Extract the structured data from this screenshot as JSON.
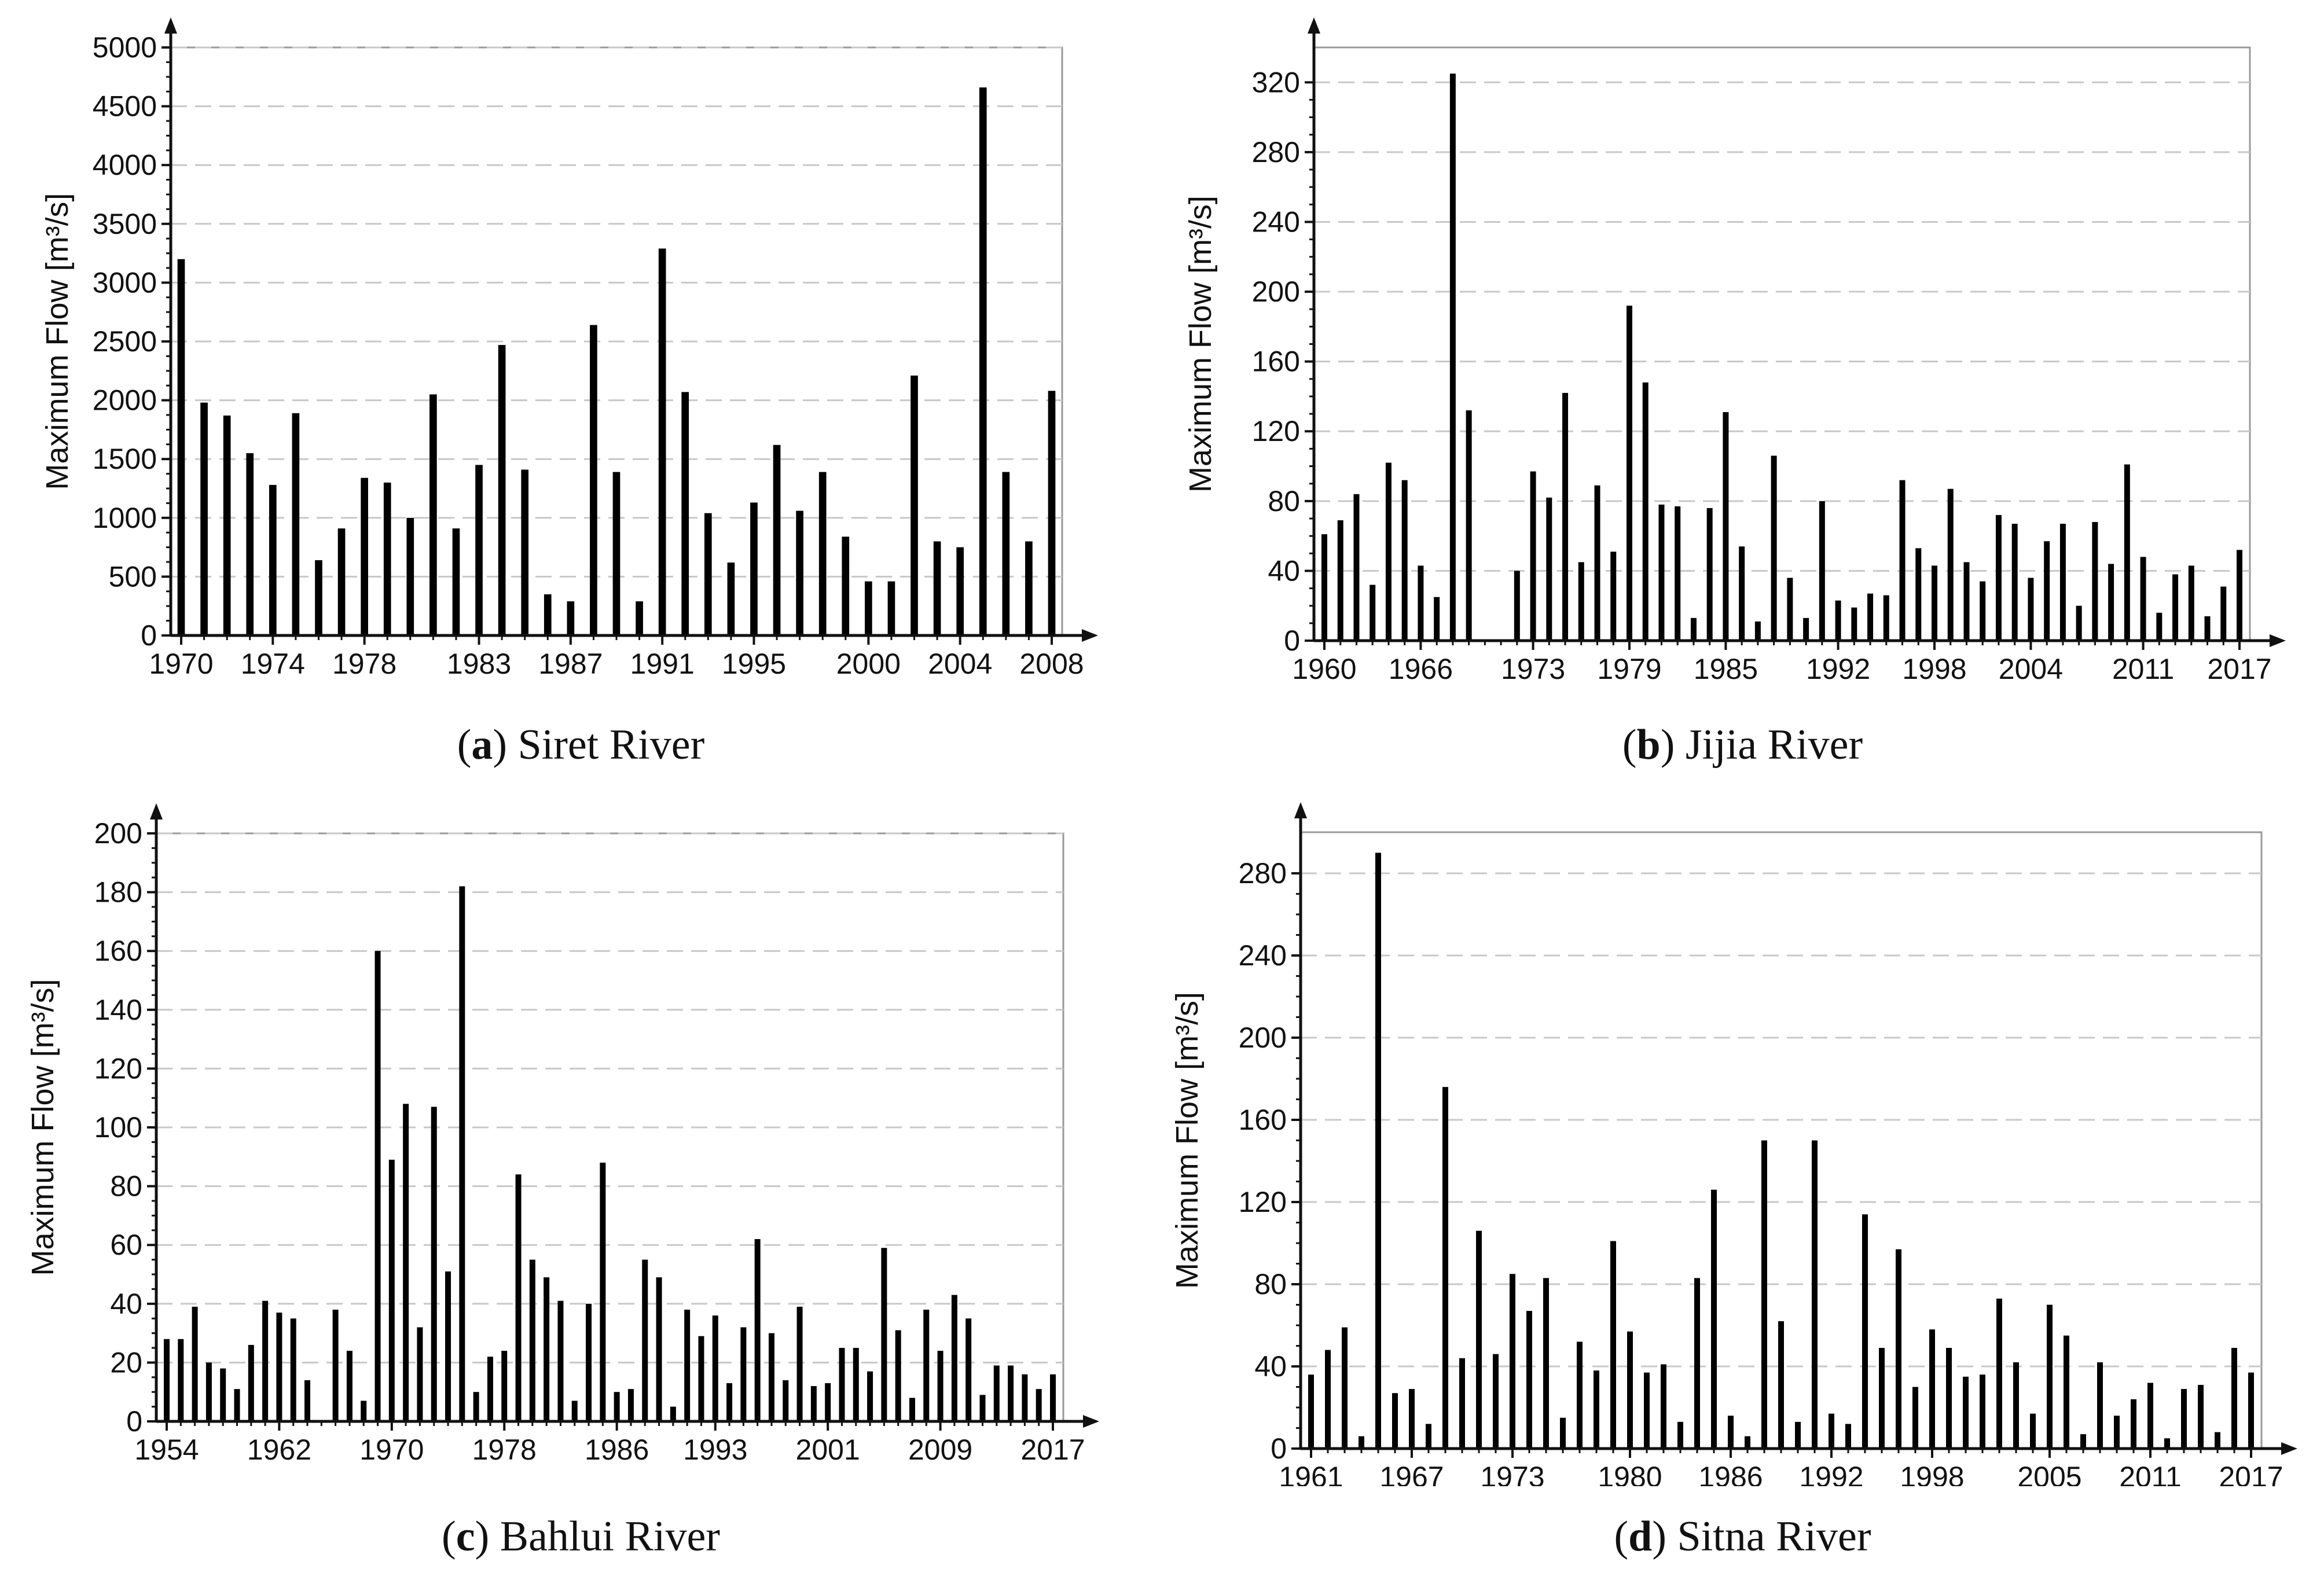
{
  "charts": [
    {
      "letter": "a",
      "caption": "Siret River",
      "chart_data": {
        "type": "bar",
        "title": "(a) Siret River",
        "xlabel": "",
        "ylabel": "Maximum Flow [m³/s]",
        "ylim": [
          0,
          5000
        ],
        "yticks": [
          "0",
          "500",
          "1000",
          "1500",
          "2000",
          "2500",
          "3000",
          "3500",
          "4000",
          "4500",
          "5000"
        ],
        "xlim": [
          1970,
          2008
        ],
        "xticks": [
          "1970",
          "1974",
          "1978",
          "1983",
          "1987",
          "1991",
          "1995",
          "2000",
          "2004",
          "2008"
        ],
        "grid": true,
        "x": [
          1970,
          1971,
          1972,
          1973,
          1974,
          1975,
          1976,
          1977,
          1978,
          1979,
          1980,
          1981,
          1982,
          1983,
          1984,
          1985,
          1986,
          1987,
          1988,
          1989,
          1990,
          1991,
          1992,
          1993,
          1994,
          1995,
          1996,
          1997,
          1998,
          1999,
          2000,
          2001,
          2002,
          2003,
          2004,
          2005,
          2006,
          2007,
          2008
        ],
        "values": [
          3200,
          1980,
          1870,
          1550,
          1280,
          1890,
          640,
          910,
          1340,
          1300,
          1000,
          2050,
          910,
          1450,
          2470,
          1410,
          350,
          290,
          2640,
          1390,
          290,
          3290,
          2070,
          1040,
          620,
          1130,
          1620,
          1060,
          1390,
          840,
          460,
          460,
          2210,
          800,
          750,
          4660,
          1390,
          800,
          2080
        ]
      }
    },
    {
      "letter": "b",
      "caption": "Jijia River",
      "chart_data": {
        "type": "bar",
        "title": "(b) Jijia River",
        "xlabel": "",
        "ylabel": "Maximum Flow [m³/s]",
        "ylim": [
          0,
          340
        ],
        "yticks": [
          "0",
          "40",
          "80",
          "120",
          "160",
          "200",
          "240",
          "280",
          "320"
        ],
        "xlim": [
          1960,
          2017
        ],
        "xticks": [
          "1960",
          "1966",
          "1973",
          "1979",
          "1985",
          "1992",
          "1998",
          "2004",
          "2011",
          "2017"
        ],
        "grid": true,
        "x": [
          1960,
          1961,
          1962,
          1963,
          1964,
          1965,
          1966,
          1967,
          1968,
          1969,
          1970,
          1971,
          1972,
          1973,
          1974,
          1975,
          1976,
          1977,
          1978,
          1979,
          1980,
          1981,
          1982,
          1983,
          1984,
          1985,
          1986,
          1987,
          1988,
          1989,
          1990,
          1991,
          1992,
          1993,
          1994,
          1995,
          1996,
          1997,
          1998,
          1999,
          2000,
          2001,
          2002,
          2003,
          2004,
          2005,
          2006,
          2007,
          2008,
          2009,
          2010,
          2011,
          2012,
          2013,
          2014,
          2015,
          2016,
          2017
        ],
        "values": [
          61,
          69,
          84,
          32,
          102,
          92,
          43,
          25,
          325,
          132,
          0,
          0,
          40,
          97,
          82,
          142,
          45,
          89,
          51,
          192,
          148,
          78,
          77,
          13,
          76,
          131,
          54,
          11,
          106,
          36,
          13,
          80,
          23,
          19,
          27,
          26,
          92,
          53,
          43,
          87,
          45,
          34,
          72,
          67,
          36,
          57,
          67,
          20,
          68,
          44,
          101,
          48,
          16,
          38,
          43,
          14,
          31,
          52
        ]
      }
    },
    {
      "letter": "c",
      "caption": "Bahlui River",
      "chart_data": {
        "type": "bar",
        "title": "(c) Bahlui River",
        "xlabel": "",
        "ylabel": "Maximum Flow [m³/s]",
        "ylim": [
          0,
          200
        ],
        "yticks": [
          "0",
          "20",
          "40",
          "60",
          "80",
          "100",
          "120",
          "140",
          "160",
          "180",
          "200"
        ],
        "xlim": [
          1954,
          2017
        ],
        "xticks": [
          "1954",
          "1962",
          "1970",
          "1978",
          "1986",
          "1993",
          "2001",
          "2009",
          "2017"
        ],
        "grid": true,
        "x": [
          1954,
          1955,
          1956,
          1957,
          1958,
          1959,
          1960,
          1961,
          1962,
          1963,
          1964,
          1965,
          1966,
          1967,
          1968,
          1969,
          1970,
          1971,
          1972,
          1973,
          1974,
          1975,
          1976,
          1977,
          1978,
          1979,
          1980,
          1981,
          1982,
          1983,
          1984,
          1985,
          1986,
          1987,
          1988,
          1989,
          1990,
          1991,
          1992,
          1993,
          1994,
          1995,
          1996,
          1997,
          1998,
          1999,
          2000,
          2001,
          2002,
          2003,
          2004,
          2005,
          2006,
          2007,
          2008,
          2009,
          2010,
          2011,
          2012,
          2013,
          2014,
          2015,
          2016,
          2017
        ],
        "values": [
          28,
          28,
          39,
          20,
          18,
          11,
          26,
          41,
          37,
          35,
          14,
          0,
          38,
          24,
          7,
          160,
          89,
          108,
          32,
          107,
          51,
          182,
          10,
          22,
          24,
          84,
          55,
          49,
          41,
          7,
          40,
          88,
          10,
          11,
          55,
          49,
          5,
          38,
          29,
          36,
          13,
          32,
          62,
          30,
          14,
          39,
          12,
          13,
          25,
          25,
          17,
          59,
          31,
          8,
          38,
          24,
          43,
          35,
          9,
          19,
          19,
          16,
          11,
          16
        ]
      }
    },
    {
      "letter": "d",
      "caption": "Sitna River",
      "chart_data": {
        "type": "bar",
        "title": "(d) Sitna River",
        "xlabel": "",
        "ylabel": "Maximum Flow [m³/s]",
        "ylim": [
          0,
          300
        ],
        "yticks": [
          "0",
          "40",
          "80",
          "120",
          "160",
          "200",
          "240",
          "280"
        ],
        "xlim": [
          1961,
          2017
        ],
        "xticks": [
          "1961",
          "1967",
          "1973",
          "1980",
          "1986",
          "1992",
          "1998",
          "2005",
          "2011",
          "2017"
        ],
        "grid": true,
        "x": [
          1961,
          1962,
          1963,
          1964,
          1965,
          1966,
          1967,
          1968,
          1969,
          1970,
          1971,
          1972,
          1973,
          1974,
          1975,
          1976,
          1977,
          1978,
          1979,
          1980,
          1981,
          1982,
          1983,
          1984,
          1985,
          1986,
          1987,
          1988,
          1989,
          1990,
          1991,
          1992,
          1993,
          1994,
          1995,
          1996,
          1997,
          1998,
          1999,
          2000,
          2001,
          2002,
          2003,
          2004,
          2005,
          2006,
          2007,
          2008,
          2009,
          2010,
          2011,
          2012,
          2013,
          2014,
          2015,
          2016,
          2017
        ],
        "values": [
          36,
          48,
          59,
          6,
          290,
          27,
          29,
          12,
          176,
          44,
          106,
          46,
          85,
          67,
          83,
          15,
          52,
          38,
          101,
          57,
          37,
          41,
          13,
          83,
          126,
          16,
          6,
          150,
          62,
          13,
          150,
          17,
          12,
          114,
          49,
          97,
          30,
          58,
          49,
          35,
          36,
          73,
          42,
          17,
          70,
          55,
          7,
          42,
          16,
          24,
          32,
          5,
          29,
          31,
          8,
          49,
          37
        ]
      }
    }
  ]
}
